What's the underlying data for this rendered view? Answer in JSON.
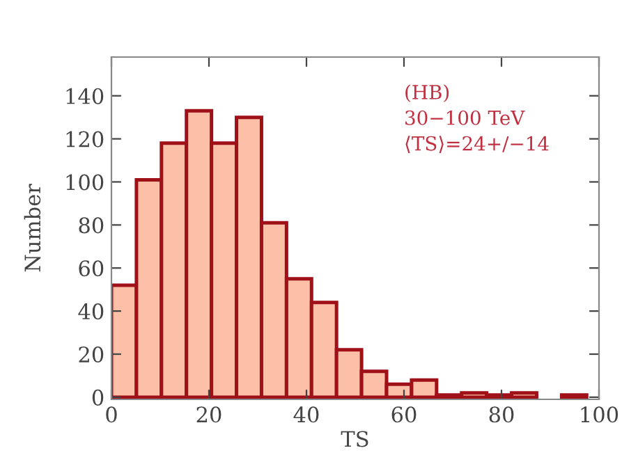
{
  "chart_data": {
    "type": "histogram",
    "bins": [
      0,
      5.13,
      10.26,
      15.39,
      20.52,
      25.65,
      30.78,
      35.91,
      41.04,
      46.17,
      51.3,
      56.43,
      61.56,
      66.69,
      71.82,
      76.95,
      82.08,
      87.21,
      92.34,
      97.47
    ],
    "values": [
      52,
      101,
      118,
      133,
      118,
      130,
      81,
      55,
      44,
      22,
      12,
      6,
      8,
      1,
      2,
      1,
      2,
      0,
      1
    ],
    "color": "#fcc0a8",
    "xlabel": "TS",
    "ylabel": "Number",
    "xlim": [
      0,
      100
    ],
    "xticks": [
      0,
      20,
      40,
      60,
      80,
      100
    ],
    "ylim": [
      -1,
      158
    ],
    "yticks": [
      0,
      20,
      40,
      60,
      80,
      100,
      120,
      140
    ],
    "annotations": [
      "(HB)",
      "30−100 TeV",
      "⟨TS⟩=24+/−14"
    ],
    "grid": false
  }
}
